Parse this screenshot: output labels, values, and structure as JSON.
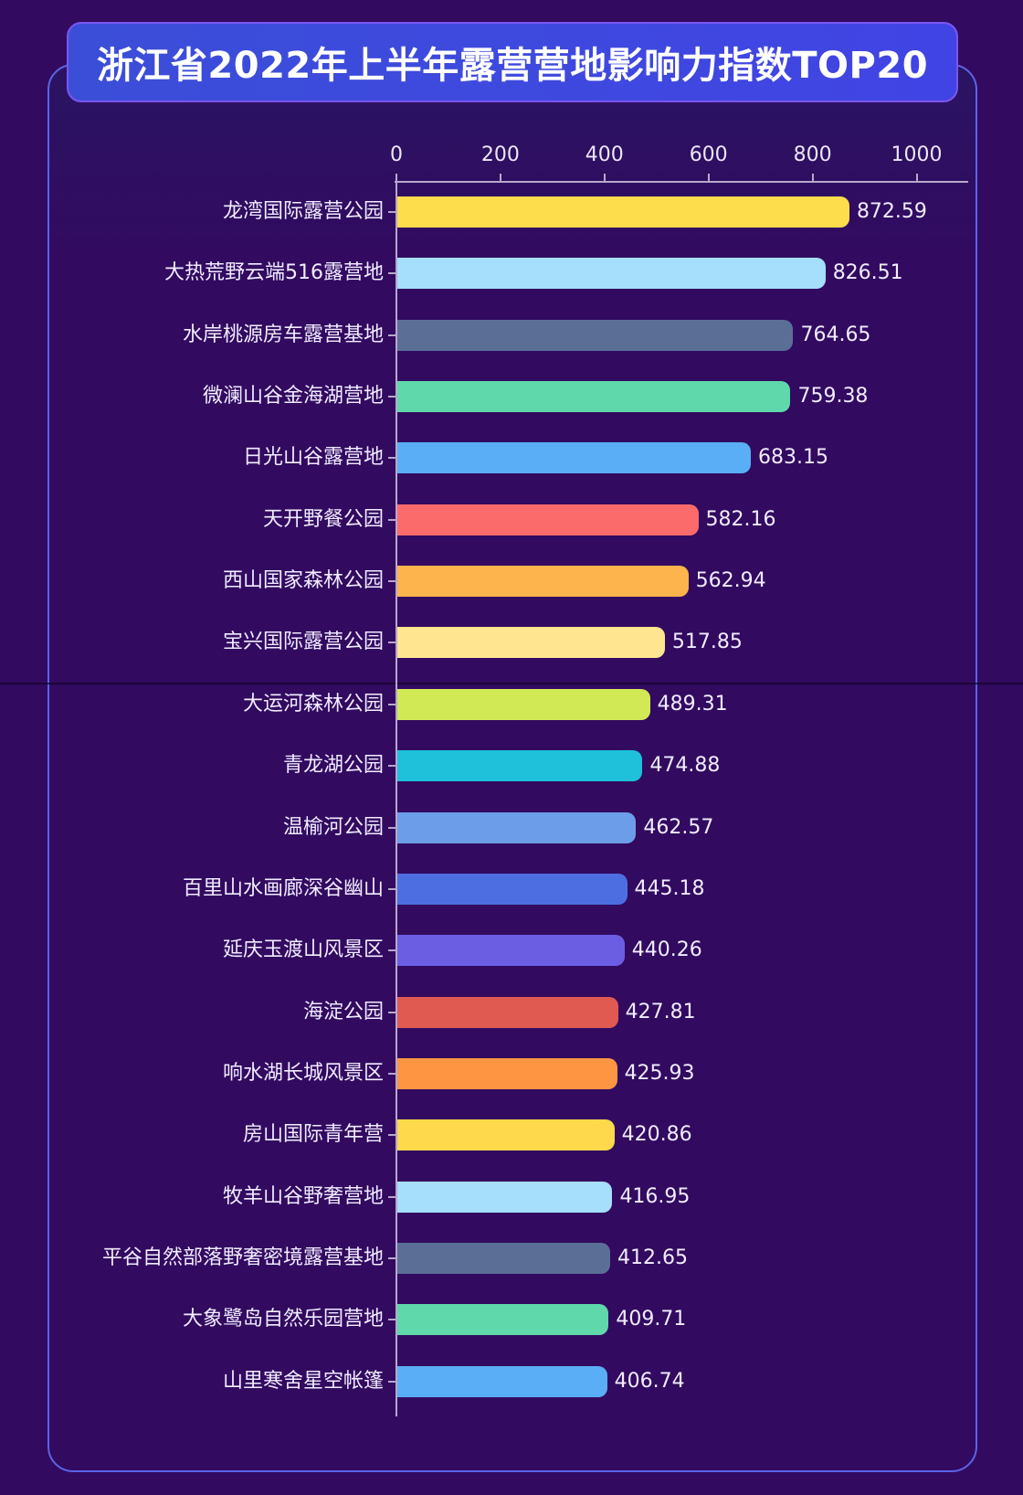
{
  "title": "浙江省2022年上半年露营营地影响力指数TOP20",
  "axis": {
    "ticks": [
      "0",
      "200",
      "400",
      "600",
      "800",
      "1000"
    ]
  },
  "chart_data": {
    "type": "bar",
    "orientation": "horizontal",
    "title": "浙江省2022年上半年露营营地影响力指数TOP20",
    "xlabel": "",
    "ylabel": "",
    "xlim": [
      0,
      1100
    ],
    "x_ticks": [
      0,
      200,
      400,
      600,
      800,
      1000
    ],
    "grid": false,
    "legend": "none",
    "categories": [
      "龙湾国际露营公园",
      "大热荒野云端516露营地",
      "水岸桃源房车露营基地",
      "微澜山谷金海湖营地",
      "日光山谷露营地",
      "天开野餐公园",
      "西山国家森林公园",
      "宝兴国际露营公园",
      "大运河森林公园",
      "青龙湖公园",
      "温榆河公园",
      "百里山水画廊深谷幽山",
      "延庆玉渡山风景区",
      "海淀公园",
      "响水湖长城风景区",
      "房山国际青年营",
      "牧羊山谷野奢营地",
      "平谷自然部落野奢密境露营基地",
      "大象鹭岛自然乐园营地",
      "山里寒舍星空帐篷"
    ],
    "values": [
      872.59,
      826.51,
      764.65,
      759.38,
      683.15,
      582.16,
      562.94,
      517.85,
      489.31,
      474.88,
      462.57,
      445.18,
      440.26,
      427.81,
      425.93,
      420.86,
      416.95,
      412.65,
      409.71,
      406.74
    ],
    "value_labels": [
      "872.59",
      "826.51",
      "764.65",
      "759.38",
      "683.15",
      "582.16",
      "562.94",
      "517.85",
      "489.31",
      "474.88",
      "462.57",
      "445.18",
      "440.26",
      "427.81",
      "425.93",
      "420.86",
      "416.95",
      "412.65",
      "409.71",
      "406.74"
    ],
    "colors": [
      "#fddd4b",
      "#a5dffb",
      "#5b6f96",
      "#5fd8ab",
      "#5aaef5",
      "#fc6b6b",
      "#fdb44c",
      "#ffe58f",
      "#d2e956",
      "#1fc0da",
      "#6c9de8",
      "#4d6ee0",
      "#6b5ee2",
      "#e05a52",
      "#fd9543",
      "#fdd94b",
      "#a5dffb",
      "#5b6f96",
      "#5fd8ab",
      "#5aaef5"
    ]
  },
  "colors": {
    "background": "#320a60",
    "title_bg": "#3f4ae0",
    "frame_border": "#5b64e8",
    "axis": "#b7a8cc",
    "text": "#f1ecff"
  }
}
